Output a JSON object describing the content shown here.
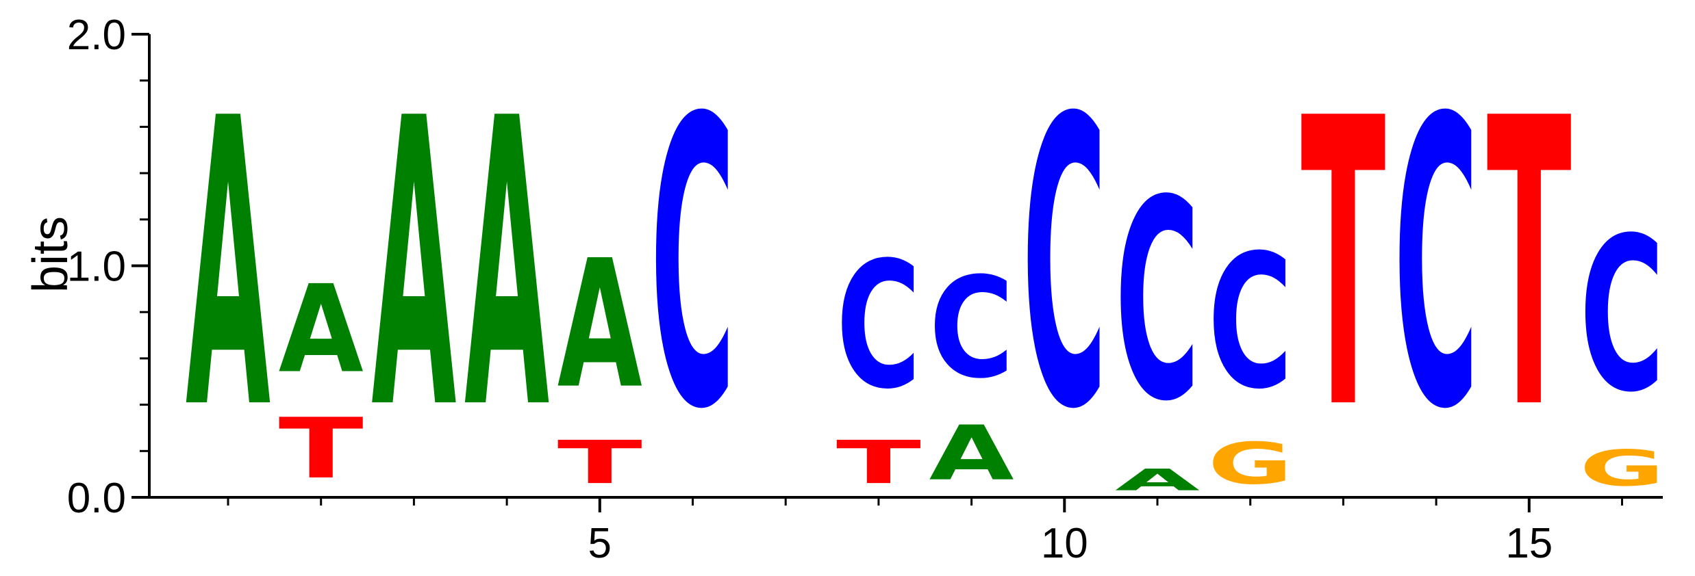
{
  "chart_data": {
    "type": "sequence-logo",
    "title": "",
    "xlabel": "",
    "ylabel": "bits",
    "ylim": [
      0,
      2.0
    ],
    "y_ticks": [
      0.0,
      1.0,
      2.0
    ],
    "y_tick_labels": [
      "0.0",
      "1.0",
      "2.0"
    ],
    "y_minor_step": 0.2,
    "x_positions": [
      1,
      2,
      3,
      4,
      5,
      6,
      7,
      8,
      9,
      10,
      11,
      12,
      13,
      14,
      15,
      16
    ],
    "x_tick_labels": [
      {
        "pos": 5,
        "label": "5"
      },
      {
        "pos": 10,
        "label": "10"
      },
      {
        "pos": 15,
        "label": "15"
      }
    ],
    "colors": {
      "A": "#008000",
      "C": "#0000ff",
      "G": "#ffa500",
      "T": "#ff0000"
    },
    "columns": [
      {
        "pos": 1,
        "letters": [
          {
            "base": "A",
            "bits": 2.0
          }
        ]
      },
      {
        "pos": 2,
        "letters": [
          {
            "base": "T",
            "bits": 0.42
          },
          {
            "base": "A",
            "bits": 0.61
          }
        ]
      },
      {
        "pos": 3,
        "letters": [
          {
            "base": "A",
            "bits": 2.0
          }
        ]
      },
      {
        "pos": 4,
        "letters": [
          {
            "base": "A",
            "bits": 2.0
          }
        ]
      },
      {
        "pos": 5,
        "letters": [
          {
            "base": "T",
            "bits": 0.3
          },
          {
            "base": "A",
            "bits": 0.89
          }
        ]
      },
      {
        "pos": 6,
        "letters": [
          {
            "base": "C",
            "bits": 2.0
          }
        ]
      },
      {
        "pos": 7,
        "letters": []
      },
      {
        "pos": 8,
        "letters": [
          {
            "base": "T",
            "bits": 0.3
          },
          {
            "base": "C",
            "bits": 0.88
          }
        ]
      },
      {
        "pos": 9,
        "letters": [
          {
            "base": "A",
            "bits": 0.38
          },
          {
            "base": "C",
            "bits": 0.7
          }
        ]
      },
      {
        "pos": 10,
        "letters": [
          {
            "base": "C",
            "bits": 2.0
          }
        ]
      },
      {
        "pos": 11,
        "letters": [
          {
            "base": "A",
            "bits": 0.15
          },
          {
            "base": "C",
            "bits": 1.39
          }
        ]
      },
      {
        "pos": 12,
        "letters": [
          {
            "base": "G",
            "bits": 0.29
          },
          {
            "base": "C",
            "bits": 0.93
          }
        ]
      },
      {
        "pos": 13,
        "letters": [
          {
            "base": "T",
            "bits": 2.0
          }
        ]
      },
      {
        "pos": 14,
        "letters": [
          {
            "base": "C",
            "bits": 2.0
          }
        ]
      },
      {
        "pos": 15,
        "letters": [
          {
            "base": "T",
            "bits": 2.0
          }
        ]
      },
      {
        "pos": 16,
        "letters": [
          {
            "base": "G",
            "bits": 0.25
          },
          {
            "base": "C",
            "bits": 1.07
          }
        ]
      }
    ]
  }
}
